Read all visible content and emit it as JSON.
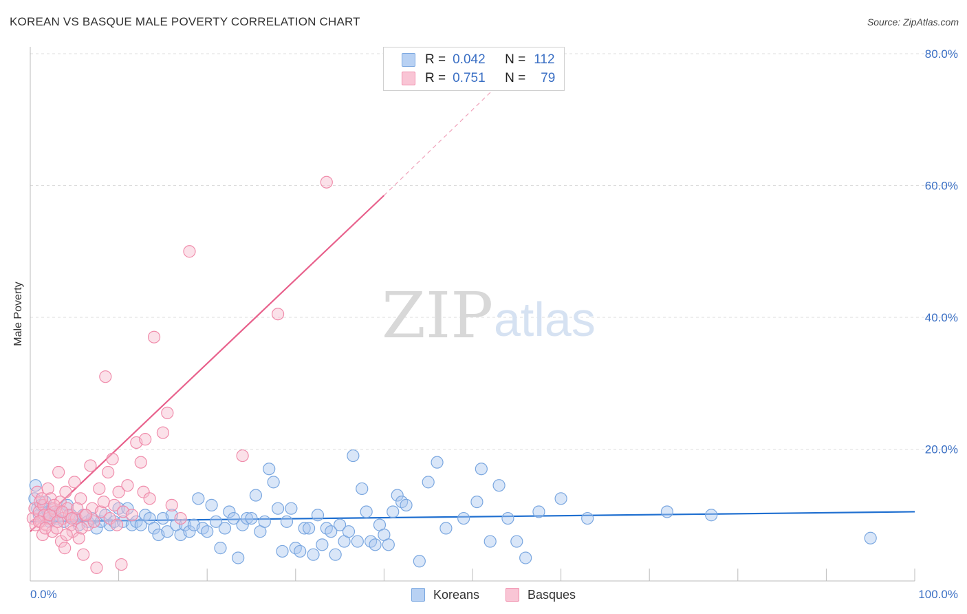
{
  "chart_data": {
    "type": "scatter",
    "title": "KOREAN VS BASQUE MALE POVERTY CORRELATION CHART",
    "source": "Source: ZipAtlas.com",
    "xlabel": "",
    "ylabel": "Male Poverty",
    "xlim": [
      0,
      100
    ],
    "ylim": [
      0,
      80
    ],
    "x_tick_labels": [
      "0.0%",
      "100.0%"
    ],
    "y_tick_labels": [
      "20.0%",
      "40.0%",
      "60.0%",
      "80.0%"
    ],
    "y_ticks": [
      20,
      40,
      60,
      80
    ],
    "grid": true,
    "watermark": [
      "ZIP",
      "atlas"
    ],
    "legend": {
      "placement": "top-center",
      "rows": [
        {
          "r_label": "R =",
          "r_value": "0.042",
          "n_label": "N =",
          "n_value": "112"
        },
        {
          "r_label": "R =",
          "r_value": "0.751",
          "n_label": "N =",
          "n_value": "79"
        }
      ]
    },
    "series": [
      {
        "name": "Koreans",
        "color": "#7aa7e0",
        "fill": "#aac8f0",
        "trend_color": "#1f6fd0",
        "trend": {
          "x0": 0,
          "y0": 9.0,
          "x1": 100,
          "y1": 10.5
        },
        "points": [
          [
            0.5,
            12.5
          ],
          [
            0.6,
            14.5
          ],
          [
            0.8,
            11.0
          ],
          [
            1.0,
            10.0
          ],
          [
            1.2,
            11.5
          ],
          [
            1.5,
            9.5
          ],
          [
            1.7,
            12.0
          ],
          [
            2.0,
            10.5
          ],
          [
            2.2,
            9.0
          ],
          [
            2.5,
            11.0
          ],
          [
            2.8,
            10.0
          ],
          [
            3.0,
            9.5
          ],
          [
            3.4,
            10.5
          ],
          [
            3.8,
            9.0
          ],
          [
            4.2,
            11.5
          ],
          [
            4.6,
            10.0
          ],
          [
            5.0,
            9.5
          ],
          [
            5.5,
            8.5
          ],
          [
            6.0,
            10.0
          ],
          [
            6.5,
            9.0
          ],
          [
            7.0,
            9.5
          ],
          [
            7.5,
            8.0
          ],
          [
            8.0,
            9.0
          ],
          [
            8.5,
            10.0
          ],
          [
            9.0,
            8.5
          ],
          [
            9.5,
            9.0
          ],
          [
            10.0,
            11.0
          ],
          [
            10.5,
            9.0
          ],
          [
            11.0,
            11.0
          ],
          [
            11.5,
            8.5
          ],
          [
            12.0,
            9.0
          ],
          [
            12.5,
            8.5
          ],
          [
            13.0,
            10.0
          ],
          [
            13.5,
            9.5
          ],
          [
            14.0,
            8.0
          ],
          [
            14.5,
            7.0
          ],
          [
            15.0,
            9.5
          ],
          [
            15.5,
            7.5
          ],
          [
            16.0,
            10.0
          ],
          [
            16.5,
            8.5
          ],
          [
            17.0,
            7.0
          ],
          [
            17.5,
            8.5
          ],
          [
            18.0,
            7.5
          ],
          [
            18.5,
            8.5
          ],
          [
            19.0,
            12.5
          ],
          [
            19.5,
            8.0
          ],
          [
            20.0,
            7.5
          ],
          [
            20.5,
            11.5
          ],
          [
            21.0,
            9.0
          ],
          [
            21.5,
            5.0
          ],
          [
            22.0,
            8.0
          ],
          [
            22.5,
            10.5
          ],
          [
            23.0,
            9.5
          ],
          [
            23.5,
            3.5
          ],
          [
            24.0,
            8.5
          ],
          [
            24.5,
            9.5
          ],
          [
            25.0,
            9.5
          ],
          [
            25.5,
            13.0
          ],
          [
            26.0,
            7.5
          ],
          [
            26.5,
            9.0
          ],
          [
            27.0,
            17.0
          ],
          [
            27.5,
            15.0
          ],
          [
            28.0,
            11.0
          ],
          [
            28.5,
            4.5
          ],
          [
            29.0,
            9.0
          ],
          [
            29.5,
            11.0
          ],
          [
            30.0,
            5.0
          ],
          [
            30.5,
            4.5
          ],
          [
            31.0,
            8.0
          ],
          [
            31.5,
            8.0
          ],
          [
            32.0,
            4.0
          ],
          [
            32.5,
            10.0
          ],
          [
            33.0,
            5.5
          ],
          [
            33.5,
            8.0
          ],
          [
            34.0,
            7.5
          ],
          [
            34.5,
            4.0
          ],
          [
            35.0,
            8.5
          ],
          [
            35.5,
            6.0
          ],
          [
            36.0,
            7.5
          ],
          [
            36.5,
            19.0
          ],
          [
            37.0,
            6.0
          ],
          [
            37.5,
            14.0
          ],
          [
            38.0,
            10.5
          ],
          [
            38.5,
            6.0
          ],
          [
            39.0,
            5.5
          ],
          [
            39.5,
            8.5
          ],
          [
            40.0,
            7.0
          ],
          [
            40.5,
            5.5
          ],
          [
            41.0,
            10.5
          ],
          [
            41.5,
            13.0
          ],
          [
            42.0,
            12.0
          ],
          [
            42.5,
            11.5
          ],
          [
            44.0,
            3.0
          ],
          [
            45.0,
            15.0
          ],
          [
            46.0,
            18.0
          ],
          [
            47.0,
            8.0
          ],
          [
            49.0,
            9.5
          ],
          [
            50.5,
            12.0
          ],
          [
            51.0,
            17.0
          ],
          [
            52.0,
            6.0
          ],
          [
            53.0,
            14.5
          ],
          [
            54.0,
            9.5
          ],
          [
            55.0,
            6.0
          ],
          [
            56.0,
            3.5
          ],
          [
            57.5,
            10.5
          ],
          [
            60.0,
            12.5
          ],
          [
            63.0,
            9.5
          ],
          [
            72.0,
            10.5
          ],
          [
            77.0,
            10.0
          ],
          [
            95.0,
            6.5
          ]
        ]
      },
      {
        "name": "Basques",
        "color": "#f08cab",
        "fill": "#f7bccf",
        "trend_color": "#e8618c",
        "trend": {
          "x0": 0,
          "y0": 7.5,
          "x1": 40,
          "y1": 58.5
        },
        "trend_dashed": {
          "x0": 40,
          "y0": 58.5,
          "x1": 55,
          "y1": 78.0
        },
        "points": [
          [
            0.3,
            9.5
          ],
          [
            0.5,
            11.0
          ],
          [
            0.6,
            8.5
          ],
          [
            0.8,
            13.5
          ],
          [
            1.0,
            10.5
          ],
          [
            1.1,
            12.0
          ],
          [
            1.2,
            9.0
          ],
          [
            1.4,
            7.0
          ],
          [
            1.5,
            11.5
          ],
          [
            1.6,
            10.0
          ],
          [
            1.8,
            8.5
          ],
          [
            2.0,
            14.0
          ],
          [
            2.1,
            9.5
          ],
          [
            2.3,
            12.5
          ],
          [
            2.5,
            7.5
          ],
          [
            2.6,
            11.0
          ],
          [
            2.8,
            10.5
          ],
          [
            3.0,
            8.0
          ],
          [
            3.2,
            16.5
          ],
          [
            3.4,
            12.0
          ],
          [
            3.5,
            6.0
          ],
          [
            3.7,
            9.5
          ],
          [
            3.9,
            5.0
          ],
          [
            4.0,
            13.5
          ],
          [
            4.2,
            11.0
          ],
          [
            4.4,
            10.0
          ],
          [
            4.6,
            8.5
          ],
          [
            4.8,
            7.5
          ],
          [
            5.0,
            15.0
          ],
          [
            5.2,
            9.5
          ],
          [
            5.5,
            6.5
          ],
          [
            5.7,
            12.5
          ],
          [
            6.0,
            4.0
          ],
          [
            6.2,
            10.0
          ],
          [
            6.5,
            8.5
          ],
          [
            6.8,
            17.5
          ],
          [
            7.0,
            11.0
          ],
          [
            7.2,
            9.0
          ],
          [
            7.5,
            2.0
          ],
          [
            7.8,
            14.0
          ],
          [
            8.0,
            10.5
          ],
          [
            8.3,
            12.0
          ],
          [
            8.5,
            31.0
          ],
          [
            8.8,
            16.5
          ],
          [
            9.0,
            9.5
          ],
          [
            9.3,
            18.5
          ],
          [
            9.5,
            11.5
          ],
          [
            9.8,
            8.5
          ],
          [
            10.0,
            13.5
          ],
          [
            10.3,
            2.5
          ],
          [
            10.5,
            10.5
          ],
          [
            11.0,
            14.5
          ],
          [
            11.5,
            10.0
          ],
          [
            12.0,
            21.0
          ],
          [
            12.5,
            18.0
          ],
          [
            12.8,
            13.5
          ],
          [
            13.0,
            21.5
          ],
          [
            13.5,
            12.5
          ],
          [
            14.0,
            37.0
          ],
          [
            15.0,
            22.5
          ],
          [
            15.5,
            25.5
          ],
          [
            16.0,
            11.5
          ],
          [
            17.0,
            9.5
          ],
          [
            18.0,
            50.0
          ],
          [
            24.0,
            19.0
          ],
          [
            28.0,
            40.5
          ],
          [
            33.5,
            60.5
          ],
          [
            1.0,
            9.0
          ],
          [
            1.3,
            12.5
          ],
          [
            1.7,
            8.0
          ],
          [
            2.2,
            10.0
          ],
          [
            2.7,
            11.5
          ],
          [
            3.1,
            9.0
          ],
          [
            3.6,
            10.5
          ],
          [
            4.1,
            7.0
          ],
          [
            4.7,
            9.5
          ],
          [
            5.3,
            11.0
          ],
          [
            5.8,
            8.0
          ],
          [
            6.3,
            10.0
          ]
        ]
      }
    ]
  }
}
